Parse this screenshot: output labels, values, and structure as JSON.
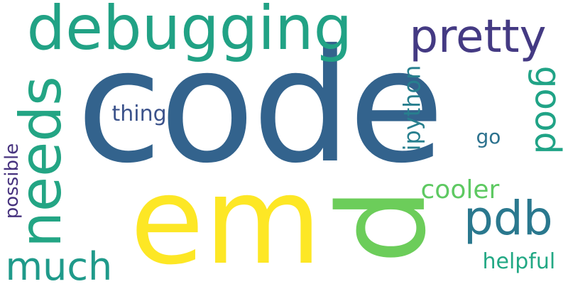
{
  "words": {
    "code": {
      "text": "code",
      "color": "#33638d"
    },
    "em": {
      "text": "em",
      "color": "#fde725"
    },
    "p": {
      "text": "p",
      "color": "#6ccd5a"
    },
    "debugging": {
      "text": "debugging",
      "color": "#21a285"
    },
    "needs": {
      "text": "needs",
      "color": "#23a584"
    },
    "pretty": {
      "text": "pretty",
      "color": "#443a83"
    },
    "pdb": {
      "text": "pdb",
      "color": "#2a788e"
    },
    "much": {
      "text": "much",
      "color": "#1f9a8a"
    },
    "good": {
      "text": "good",
      "color": "#20a386"
    },
    "cooler": {
      "text": "cooler",
      "color": "#5ec962"
    },
    "ipython": {
      "text": "ipython",
      "color": "#277f8e"
    },
    "helpful": {
      "text": "helpful",
      "color": "#22a884"
    },
    "thing": {
      "text": "thing",
      "color": "#3b528b"
    },
    "go": {
      "text": "go",
      "color": "#2c728e"
    },
    "possible": {
      "text": "possible",
      "color": "#46327e"
    }
  }
}
